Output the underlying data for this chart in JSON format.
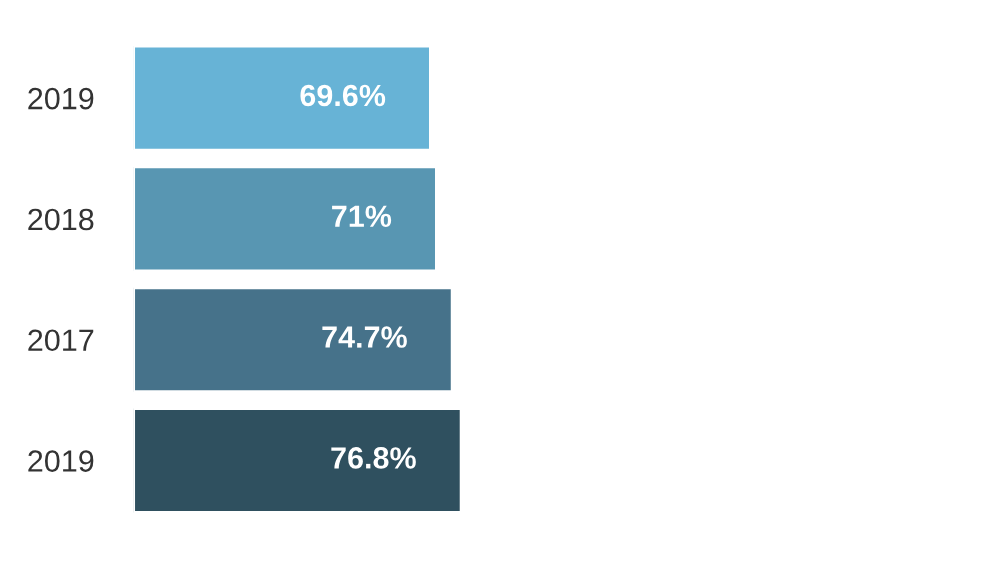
{
  "chart_data": {
    "type": "bar",
    "orientation": "horizontal",
    "categories": [
      "2019",
      "2018",
      "2017",
      "2019"
    ],
    "values": [
      69.6,
      71,
      74.7,
      76.8
    ],
    "value_labels": [
      "69.6%",
      "71%",
      "74.7%",
      "76.8%"
    ],
    "colors": [
      "#67b3d6",
      "#5896b2",
      "#46728a",
      "#2f505f"
    ],
    "grid": false,
    "legend": false
  }
}
